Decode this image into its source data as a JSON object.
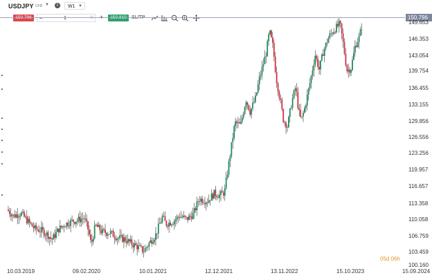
{
  "header": {
    "symbol": "USDJPY",
    "symbol_type": "CFD",
    "timeframe": "W1"
  },
  "trade": {
    "sell_price": "150.796",
    "quantity": "1",
    "buy_price": "150.810",
    "sltp_label": "SL/TP",
    "minus": "–",
    "plus": "+"
  },
  "toolbar_icons": [
    "line-tool-icon",
    "indicator-icon",
    "zoom-out-icon",
    "zoom-in-icon",
    "crosshair-icon"
  ],
  "current_price": "150.796",
  "colors": {
    "up": "#1e8a5e",
    "down": "#d0313d",
    "sell": "#e0454e",
    "buy": "#2ba36b",
    "price_tag": "#7d869c",
    "countdown": "#e8952c"
  },
  "countdown": "05d 06h",
  "chart_data": {
    "type": "candlestick",
    "x_tick_labels": [
      "10.03.2019",
      "09.02.2020",
      "10.01.2021",
      "12.12.2021",
      "13.11.2022",
      "15.10.2023",
      "15.09.2024"
    ],
    "y_tick_labels": [
      "149.653",
      "146.353",
      "143.054",
      "139.754",
      "136.455",
      "133.155",
      "129.856",
      "126.556",
      "123.256",
      "119.957",
      "116.657",
      "113.358",
      "110.058",
      "106.759",
      "103.459",
      "100.160"
    ],
    "ylim": [
      100.16,
      151.2
    ],
    "close_path": [
      [
        2019.0,
        111.9
      ],
      [
        2019.1,
        110.6
      ],
      [
        2019.2,
        111.2
      ],
      [
        2019.3,
        109.5
      ],
      [
        2019.4,
        107.9
      ],
      [
        2019.5,
        107.5
      ],
      [
        2019.6,
        106.5
      ],
      [
        2019.65,
        105.6
      ],
      [
        2019.75,
        107.8
      ],
      [
        2019.85,
        108.9
      ],
      [
        2019.95,
        109.5
      ],
      [
        2020.05,
        109.8
      ],
      [
        2020.12,
        110.2
      ],
      [
        2020.18,
        107.5
      ],
      [
        2020.22,
        104.5
      ],
      [
        2020.28,
        108.6
      ],
      [
        2020.38,
        107.2
      ],
      [
        2020.5,
        107.0
      ],
      [
        2020.6,
        106.0
      ],
      [
        2020.7,
        105.7
      ],
      [
        2020.8,
        104.8
      ],
      [
        2020.9,
        104.0
      ],
      [
        2020.98,
        103.2
      ],
      [
        2021.05,
        104.7
      ],
      [
        2021.15,
        106.5
      ],
      [
        2021.25,
        110.4
      ],
      [
        2021.3,
        108.9
      ],
      [
        2021.4,
        109.4
      ],
      [
        2021.5,
        110.6
      ],
      [
        2021.6,
        109.9
      ],
      [
        2021.7,
        111.0
      ],
      [
        2021.78,
        114.2
      ],
      [
        2021.9,
        113.7
      ],
      [
        2022.0,
        115.3
      ],
      [
        2022.08,
        114.9
      ],
      [
        2022.15,
        115.6
      ],
      [
        2022.22,
        122.5
      ],
      [
        2022.3,
        130.2
      ],
      [
        2022.38,
        129.6
      ],
      [
        2022.46,
        135.1
      ],
      [
        2022.52,
        132.5
      ],
      [
        2022.6,
        135.4
      ],
      [
        2022.65,
        139.2
      ],
      [
        2022.75,
        144.8
      ],
      [
        2022.8,
        149.4
      ],
      [
        2022.85,
        146.2
      ],
      [
        2022.9,
        139.4
      ],
      [
        2022.96,
        134.5
      ],
      [
        2023.0,
        130.9
      ],
      [
        2023.06,
        129.4
      ],
      [
        2023.12,
        134.4
      ],
      [
        2023.18,
        137.8
      ],
      [
        2023.22,
        132.8
      ],
      [
        2023.26,
        130.6
      ],
      [
        2023.32,
        133.9
      ],
      [
        2023.4,
        139.6
      ],
      [
        2023.46,
        144.5
      ],
      [
        2023.52,
        141.4
      ],
      [
        2023.58,
        145.2
      ],
      [
        2023.66,
        148.3
      ],
      [
        2023.74,
        149.8
      ],
      [
        2023.82,
        151.0
      ],
      [
        2023.86,
        147.5
      ],
      [
        2023.92,
        141.2
      ],
      [
        2023.98,
        141.6
      ],
      [
        2024.04,
        146.3
      ],
      [
        2024.1,
        148.2
      ],
      [
        2024.14,
        150.796
      ]
    ]
  }
}
